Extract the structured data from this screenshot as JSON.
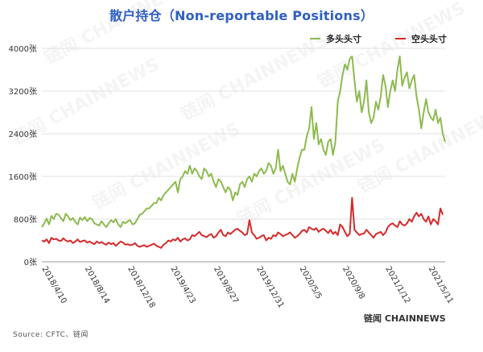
{
  "title": "散户持仓（Non-reportable Positions）",
  "source": "Source: CFTC、链闻",
  "brand": "链闻 CHAINNEWS",
  "watermark_text": "链闻 CHAINNEWS",
  "colors": {
    "long": "#8dba4f",
    "short": "#d42a2a",
    "grid": "#e2e2e2",
    "title": "#2f5fc2"
  },
  "chart_data": {
    "type": "line",
    "title": "散户持仓（Non-reportable Positions）",
    "legend_position": "top-right",
    "grid": true,
    "ylim": [
      0,
      4000
    ],
    "y_ticks": [
      0,
      800,
      1600,
      2400,
      3200,
      4000
    ],
    "y_tick_labels": [
      "0张",
      "800张",
      "1600张",
      "2400张",
      "3200张",
      "4000张"
    ],
    "x_tick_labels": [
      "2018/4/10",
      "2018/8/14",
      "2018/12/18",
      "2019/4/23",
      "2019/8/27",
      "2019/12/31",
      "2020/5/5",
      "2020/9/8",
      "2021/1/12",
      "2021/5/11"
    ],
    "x_tick_index": [
      0,
      18,
      36,
      54,
      72,
      90,
      108,
      126,
      144,
      162
    ],
    "series": [
      {
        "name": "多头头寸",
        "color": "#8dba4f",
        "values": [
          650,
          720,
          810,
          700,
          860,
          800,
          900,
          880,
          820,
          760,
          900,
          850,
          780,
          820,
          750,
          700,
          830,
          780,
          840,
          760,
          820,
          800,
          720,
          700,
          680,
          760,
          700,
          650,
          720,
          780,
          740,
          800,
          700,
          650,
          750,
          720,
          760,
          780,
          700,
          720,
          800,
          880,
          900,
          950,
          1000,
          1000,
          1050,
          1100,
          1100,
          1200,
          1150,
          1250,
          1300,
          1350,
          1400,
          1450,
          1500,
          1300,
          1550,
          1600,
          1700,
          1650,
          1800,
          1650,
          1750,
          1700,
          1600,
          1550,
          1750,
          1700,
          1600,
          1650,
          1500,
          1400,
          1550,
          1500,
          1400,
          1300,
          1400,
          1350,
          1150,
          1300,
          1250,
          1450,
          1500,
          1400,
          1550,
          1600,
          1500,
          1650,
          1600,
          1700,
          1750,
          1650,
          1700,
          1850,
          1800,
          1650,
          1750,
          2100,
          1700,
          1800,
          1650,
          1500,
          1450,
          1650,
          1500,
          1750,
          1950,
          2100,
          2100,
          2350,
          2500,
          2900,
          2300,
          2600,
          2200,
          2300,
          2100,
          2000,
          2250,
          2300,
          2000,
          2250,
          3000,
          3200,
          3500,
          3700,
          3600,
          3800,
          3850,
          3400,
          3000,
          3200,
          2800,
          3000,
          3400,
          2800,
          2600,
          2700,
          3000,
          2850,
          3100,
          3500,
          3300,
          2900,
          3200,
          3400,
          3200,
          3600,
          3850,
          3300,
          3450,
          3550,
          3250,
          3400,
          3500,
          3100,
          2850,
          2500,
          2800,
          3050,
          2800,
          2700,
          2650,
          2850,
          2600,
          2700,
          2400,
          2250
        ]
      },
      {
        "name": "空头头寸",
        "color": "#d42a2a",
        "values": [
          400,
          380,
          420,
          350,
          450,
          420,
          430,
          400,
          390,
          440,
          400,
          380,
          400,
          350,
          380,
          420,
          370,
          390,
          400,
          360,
          380,
          350,
          330,
          380,
          350,
          370,
          340,
          320,
          360,
          330,
          350,
          300,
          340,
          380,
          360,
          320,
          330,
          310,
          320,
          350,
          300,
          280,
          300,
          310,
          280,
          300,
          320,
          340,
          300,
          280,
          260,
          320,
          350,
          400,
          380,
          420,
          400,
          450,
          380,
          420,
          440,
          400,
          420,
          500,
          480,
          520,
          560,
          500,
          480,
          460,
          500,
          520,
          450,
          480,
          550,
          600,
          500,
          480,
          550,
          520,
          560,
          600,
          620,
          580,
          550,
          500,
          520,
          780,
          550,
          500,
          430,
          450,
          480,
          500,
          400,
          450,
          430,
          500,
          480,
          550,
          520,
          480,
          500,
          520,
          550,
          500,
          450,
          480,
          520,
          580,
          600,
          550,
          650,
          620,
          600,
          630,
          560,
          600,
          620,
          580,
          540,
          600,
          520,
          560,
          500,
          700,
          650,
          560,
          480,
          520,
          1200,
          600,
          550,
          500,
          520,
          530,
          600,
          550,
          500,
          450,
          520,
          540,
          560,
          500,
          550,
          650,
          700,
          720,
          680,
          650,
          760,
          700,
          680,
          720,
          800,
          750,
          850,
          920,
          850,
          900,
          800,
          750,
          850,
          700,
          800,
          760,
          700,
          1000,
          880
        ]
      }
    ]
  }
}
